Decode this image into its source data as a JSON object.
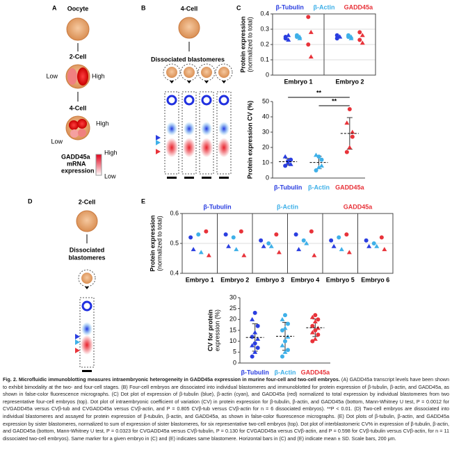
{
  "panels": {
    "A": {
      "letter": "A",
      "texts": [
        "Oocyte",
        "2-Cell",
        "Low",
        "High",
        "4-Cell",
        "High",
        "Low",
        "GADD45a",
        "mRNA",
        "expression",
        "High",
        "Low"
      ]
    },
    "B": {
      "letter": "B",
      "texts": [
        "4-Cell",
        "Dissociated blastomeres"
      ]
    },
    "C": {
      "letter": "C"
    },
    "D": {
      "letter": "D",
      "texts": [
        "2-Cell",
        "Dissociated",
        "blastomeres"
      ]
    },
    "E": {
      "letter": "E"
    }
  },
  "chart_data": [
    {
      "type": "dot",
      "ylabel": [
        "Protein expression",
        "(normalized to total)"
      ],
      "categories": [
        "Embryo 1",
        "Embryo 2"
      ],
      "series": [
        {
          "name": "β-Tubulin",
          "color": "#2a3ee0",
          "values": [
            [
              0.24,
              0.26,
              0.25,
              0.23
            ],
            [
              0.26,
              0.25,
              0.24,
              0.25
            ]
          ]
        },
        {
          "name": "β-Actin",
          "color": "#3fb0e8",
          "values": [
            [
              0.25,
              0.24,
              0.26,
              0.25
            ],
            [
              0.25,
              0.24,
              0.26,
              0.25
            ]
          ]
        },
        {
          "name": "GADD45a",
          "color": "#e8333a",
          "values": [
            [
              0.38,
              0.28,
              0.2,
              0.12
            ],
            [
              0.28,
              0.26,
              0.23,
              0.21
            ]
          ]
        }
      ],
      "ylim": [
        0,
        0.4
      ],
      "yticks": [
        0,
        0.1,
        0.2,
        0.3,
        0.4
      ]
    },
    {
      "type": "strip",
      "ylabel": [
        "Protein expression CV (%)"
      ],
      "categories": [
        "β-Tubulin",
        "β-Actin",
        "GADD45a"
      ],
      "colors": [
        "#2a3ee0",
        "#3fb0e8",
        "#e8333a"
      ],
      "values": [
        [
          8,
          10,
          12,
          14,
          11,
          9
        ],
        [
          5,
          7,
          12,
          15,
          14,
          8
        ],
        [
          17,
          20,
          27,
          36,
          45,
          30
        ]
      ],
      "ylim": [
        0,
        50
      ],
      "yticks": [
        0,
        10,
        20,
        30,
        40,
        50
      ],
      "annotations": [
        "**",
        "**"
      ]
    },
    {
      "type": "dot",
      "ylabel": [
        "Protein expression",
        "(normalized to total)"
      ],
      "categories": [
        "Embryo 1",
        "Embryo 2",
        "Embryo 3",
        "Embryo 4",
        "Embryo 5",
        "Embryo 6"
      ],
      "series": [
        {
          "name": "β-Tubulin",
          "color": "#2a3ee0",
          "values": [
            [
              0.52,
              0.48
            ],
            [
              0.53,
              0.49
            ],
            [
              0.51,
              0.49
            ],
            [
              0.53,
              0.48
            ],
            [
              0.51,
              0.49
            ],
            [
              0.51,
              0.49
            ]
          ]
        },
        {
          "name": "β-Actin",
          "color": "#3fb0e8",
          "values": [
            [
              0.53,
              0.47
            ],
            [
              0.52,
              0.48
            ],
            [
              0.5,
              0.49
            ],
            [
              0.51,
              0.5
            ],
            [
              0.52,
              0.48
            ],
            [
              0.5,
              0.49
            ]
          ]
        },
        {
          "name": "GADD45a",
          "color": "#e8333a",
          "values": [
            [
              0.54,
              0.46
            ],
            [
              0.54,
              0.46
            ],
            [
              0.53,
              0.47
            ],
            [
              0.54,
              0.46
            ],
            [
              0.53,
              0.47
            ],
            [
              0.52,
              0.48
            ]
          ]
        }
      ],
      "ylim": [
        0.4,
        0.6
      ],
      "yticks": [
        0.4,
        0.5,
        0.6
      ]
    },
    {
      "type": "strip",
      "ylabel": [
        "CV for protein",
        "expression (%)"
      ],
      "categories": [
        "β-Tubulin",
        "β-Actin",
        "GADD45a"
      ],
      "colors": [
        "#2a3ee0",
        "#3fb0e8",
        "#e8333a"
      ],
      "values": [
        [
          3,
          5,
          7,
          8,
          9,
          11,
          12,
          14,
          17,
          20,
          23
        ],
        [
          3,
          5,
          6,
          8,
          10,
          12,
          15,
          16,
          18,
          20,
          22
        ],
        [
          10,
          11,
          13,
          14,
          15,
          16,
          17,
          19,
          20,
          21,
          22
        ]
      ],
      "ylim": [
        0,
        30
      ],
      "yticks": [
        0,
        5,
        10,
        15,
        20,
        25,
        30
      ]
    }
  ],
  "caption": {
    "title": "Fig. 2. Microfluidic immunoblotting measures intraembryonic heterogeneity in GADD45a expression in murine four-cell and two-cell embryos.",
    "body": "(A) GADD45a transcript levels have been shown to exhibit bimodality at the two- and four-cell stages. (B) Four-cell embryos are dissociated into individual blastomeres and immunoblotted for protein expression of β-tubulin, β-actin, and GADD45a, as shown in false-color fluorescence micrographs. (C) Dot plot of expression of β-tubulin (blue), β-actin (cyan), and GADD45a (red) normalized to total expression by individual blastomeres from two representative four-cell embryos (top). Dot plot of intraembryonic coefficient of variation (CV) in protein expression for β-tubulin, β-actin, and GADD45a (bottom, Mann-Whitney U test, P = 0.0012 for CVGADD45a versus CVβ-tub and CVGADD45a versus CVβ-actin, and P = 0.805 CVβ-tub versus CVβ-actin for n = 6 dissociated embryos). **P < 0.01. (D) Two-cell embryos are dissociated into individual blastomeres and assayed for protein expression of β-tubulin, β-actin, and GADD45a, as shown in false-color fluorescence micrographs. (E) Dot plots of β-tubulin, β-actin, and GADD45a expression by sister blastomeres, normalized to sum of expression of sister blastomeres, for six representative two-cell embryos (top). Dot plot of interblastomeric CV% in expression of β-tubulin, β-actin, and GADD45a (bottom, Mann-Whitney U test, P = 0.0323 for CVGADD45a versus CVβ-tubulin, P = 0.130 for CVGADD45a versus CVβ-actin, and P = 0.598 for CVβ-tubulin versus CVβ-actin, for n = 11 dissociated two-cell embryos). Same marker for a given embryo in (C) and (E) indicates same blastomere. Horizontal bars in (C) and (E) indicate mean ± SD. Scale bars, 200 μm."
  }
}
